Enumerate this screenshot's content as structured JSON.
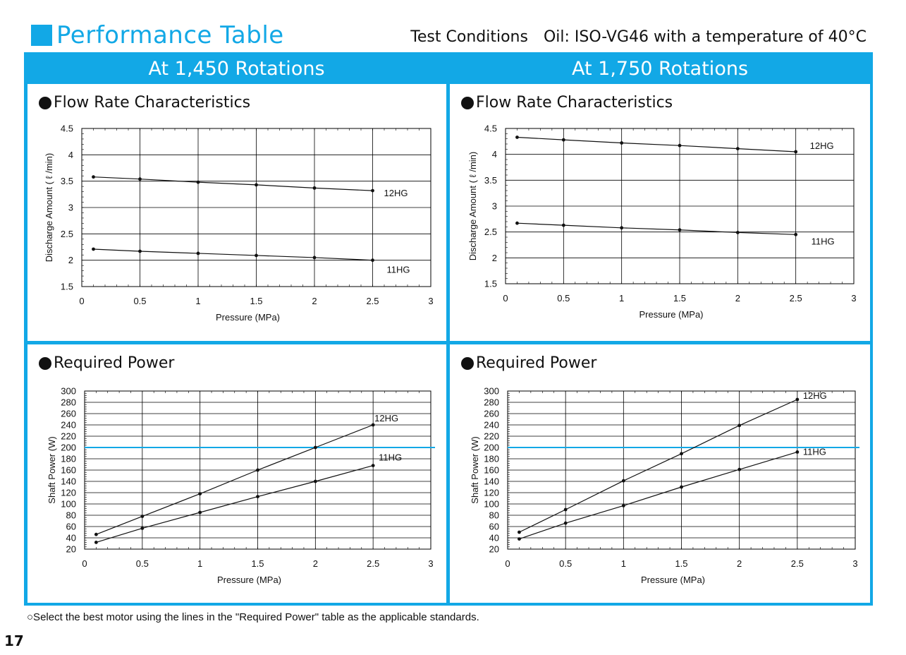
{
  "header": {
    "title": "Performance Table",
    "test_conditions_label": "Test Conditions",
    "test_conditions_text": "Oil: ISO-VG46 with a temperature of 40°C"
  },
  "columns": [
    "At 1,450 Rotations",
    "At 1,750 Rotations"
  ],
  "footnote": "○Select the best motor using the lines in the \"Required Power\" table as the applicable standards.",
  "page_number": "17",
  "colors": {
    "accent": "#12a8e6",
    "line": "#111111",
    "grid": "#000000",
    "reference_line": "#12a8e6"
  },
  "chart_data": [
    {
      "type": "line",
      "title": "●Flow Rate Characteristics",
      "rotation": "At 1,450 Rotations",
      "xlabel": "Pressure (MPa)",
      "ylabel": "Discharge Amount ( ℓ /min)",
      "xlim": [
        0,
        3
      ],
      "ylim": [
        1.5,
        4.5
      ],
      "xticks": [
        0,
        0.5,
        1,
        1.5,
        2,
        2.5,
        3
      ],
      "xtick_labels": [
        "0",
        "0.5",
        "1",
        "1.5",
        "2",
        "2.5",
        "3"
      ],
      "yticks": [
        1.5,
        2,
        2.5,
        3,
        3.5,
        4,
        4.5
      ],
      "ytick_labels": [
        "1.5",
        "2",
        "2.5",
        "3",
        "3.5",
        "4",
        "4.5"
      ],
      "grid": true,
      "series": [
        {
          "name": "12HG",
          "x": [
            0.1,
            0.5,
            1,
            1.5,
            2,
            2.5
          ],
          "y": [
            3.58,
            3.54,
            3.48,
            3.43,
            3.37,
            3.32
          ]
        },
        {
          "name": "11HG",
          "x": [
            0.1,
            0.5,
            1,
            1.5,
            2,
            2.5
          ],
          "y": [
            2.21,
            2.17,
            2.13,
            2.09,
            2.05,
            2.0
          ]
        }
      ]
    },
    {
      "type": "line",
      "title": "●Flow Rate Characteristics",
      "rotation": "At 1,750 Rotations",
      "xlabel": "Pressure (MPa)",
      "ylabel": "Discharge Amount ( ℓ /min)",
      "xlim": [
        0,
        3
      ],
      "ylim": [
        1.5,
        4.5
      ],
      "xticks": [
        0,
        0.5,
        1,
        1.5,
        2,
        2.5,
        3
      ],
      "xtick_labels": [
        "0",
        "0.5",
        "1",
        "1.5",
        "2",
        "2.5",
        "3"
      ],
      "yticks": [
        1.5,
        2,
        2.5,
        3,
        3.5,
        4,
        4.5
      ],
      "ytick_labels": [
        "1.5",
        "2",
        "2.5",
        "3",
        "3.5",
        "4",
        "4.5"
      ],
      "grid": true,
      "series": [
        {
          "name": "12HG",
          "x": [
            0.1,
            0.5,
            1,
            1.5,
            2,
            2.5
          ],
          "y": [
            4.33,
            4.28,
            4.22,
            4.17,
            4.11,
            4.05
          ]
        },
        {
          "name": "11HG",
          "x": [
            0.1,
            0.5,
            1,
            1.5,
            2,
            2.5
          ],
          "y": [
            2.67,
            2.63,
            2.58,
            2.54,
            2.49,
            2.45
          ]
        }
      ]
    },
    {
      "type": "line",
      "title": "●Required Power",
      "rotation": "At 1,450 Rotations",
      "xlabel": "Pressure (MPa)",
      "ylabel": "Shaft Power (W)",
      "xlim": [
        0,
        3
      ],
      "ylim": [
        20,
        300
      ],
      "xticks": [
        0,
        0.5,
        1,
        1.5,
        2,
        2.5,
        3
      ],
      "xtick_labels": [
        "0",
        "0.5",
        "1",
        "1.5",
        "2",
        "2.5",
        "3"
      ],
      "yticks": [
        20,
        40,
        60,
        80,
        100,
        120,
        140,
        160,
        180,
        200,
        220,
        240,
        260,
        280,
        300
      ],
      "ytick_labels": [
        "20",
        "40",
        "60",
        "80",
        "100",
        "120",
        "140",
        "160",
        "180",
        "200",
        "220",
        "240",
        "260",
        "280",
        "300"
      ],
      "grid": true,
      "reference_line_y": 200,
      "series": [
        {
          "name": "12HG",
          "x": [
            0.1,
            0.5,
            1,
            1.5,
            2,
            2.5
          ],
          "y": [
            46,
            78,
            118,
            160,
            200,
            240
          ]
        },
        {
          "name": "11HG",
          "x": [
            0.1,
            0.5,
            1,
            1.5,
            2,
            2.5
          ],
          "y": [
            32,
            57,
            85,
            113,
            140,
            168
          ]
        }
      ]
    },
    {
      "type": "line",
      "title": "●Required Power",
      "rotation": "At 1,750 Rotations",
      "xlabel": "Pressure (MPa)",
      "ylabel": "Shaft Power (W)",
      "xlim": [
        0,
        3
      ],
      "ylim": [
        20,
        300
      ],
      "xticks": [
        0,
        0.5,
        1,
        1.5,
        2,
        2.5,
        3
      ],
      "xtick_labels": [
        "0",
        "0.5",
        "1",
        "1.5",
        "2",
        "2.5",
        "3"
      ],
      "yticks": [
        20,
        40,
        60,
        80,
        100,
        120,
        140,
        160,
        180,
        200,
        220,
        240,
        260,
        280,
        300
      ],
      "ytick_labels": [
        "20",
        "40",
        "60",
        "80",
        "100",
        "120",
        "140",
        "160",
        "180",
        "200",
        "220",
        "240",
        "260",
        "280",
        "300"
      ],
      "grid": true,
      "reference_line_y": 200,
      "series": [
        {
          "name": "12HG",
          "x": [
            0.1,
            0.5,
            1,
            1.5,
            2,
            2.5
          ],
          "y": [
            50,
            90,
            141,
            189,
            239,
            285
          ]
        },
        {
          "name": "11HG",
          "x": [
            0.1,
            0.5,
            1,
            1.5,
            2,
            2.5
          ],
          "y": [
            38,
            66,
            97,
            130,
            161,
            192
          ]
        }
      ]
    }
  ]
}
